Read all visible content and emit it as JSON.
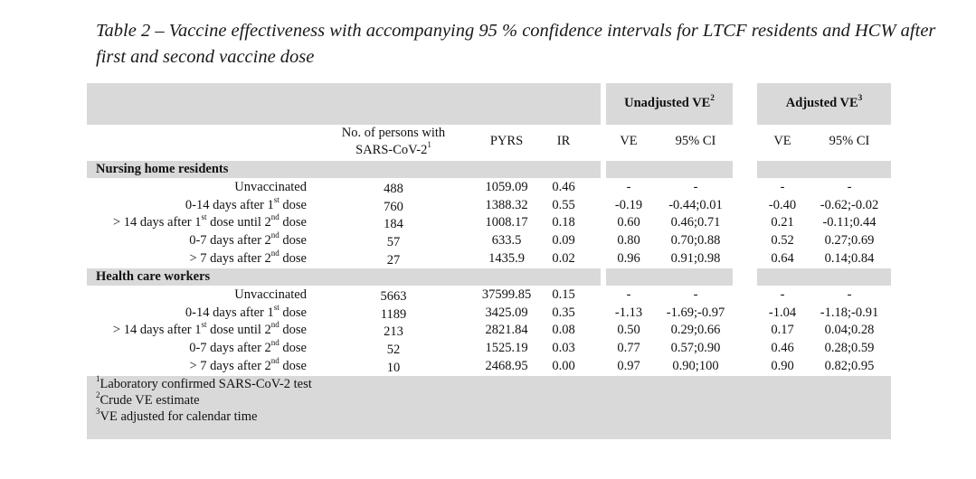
{
  "caption": "Table 2 – Vaccine effectiveness with accompanying 95 % confidence intervals for LTCF residents and HCW after first and second vaccine dose",
  "header": {
    "group_unadjusted": "Unadjusted VE",
    "group_unadjusted_sup": "2",
    "group_adjusted": "Adjusted VE",
    "group_adjusted_sup": "3",
    "col_persons_line1": "No. of persons with",
    "col_persons_line2": "SARS-CoV-2",
    "col_persons_sup": "1",
    "col_pyrs": "PYRS",
    "col_ir": "IR",
    "col_ve": "VE",
    "col_ci": "95% CI",
    "col_ve_adj": "VE",
    "col_ci_adj": "95% CI"
  },
  "sections": [
    {
      "title": "Nursing home residents",
      "rows": [
        {
          "cases": "488",
          "pyrs": "1059.09",
          "ir": "0.46",
          "ve": "-",
          "ci": "-",
          "ve_adj": "-",
          "ci_adj": "-"
        },
        {
          "cases": "760",
          "pyrs": "1388.32",
          "ir": "0.55",
          "ve": "-0.19",
          "ci": "-0.44;0.01",
          "ve_adj": "-0.40",
          "ci_adj": "-0.62;-0.02"
        },
        {
          "cases": "184",
          "pyrs": "1008.17",
          "ir": "0.18",
          "ve": "0.60",
          "ci": "0.46;0.71",
          "ve_adj": "0.21",
          "ci_adj": "-0.11;0.44"
        },
        {
          "cases": "57",
          "pyrs": "633.5",
          "ir": "0.09",
          "ve": "0.80",
          "ci": "0.70;0.88",
          "ve_adj": "0.52",
          "ci_adj": "0.27;0.69"
        },
        {
          "cases": "27",
          "pyrs": "1435.9",
          "ir": "0.02",
          "ve": "0.96",
          "ci": "0.91;0.98",
          "ve_adj": "0.64",
          "ci_adj": "0.14;0.84"
        }
      ]
    },
    {
      "title": "Health care workers",
      "rows": [
        {
          "cases": "5663",
          "pyrs": "37599.85",
          "ir": "0.15",
          "ve": "-",
          "ci": "-",
          "ve_adj": "-",
          "ci_adj": "-"
        },
        {
          "cases": "1189",
          "pyrs": "3425.09",
          "ir": "0.35",
          "ve": "-1.13",
          "ci": "-1.69;-0.97",
          "ve_adj": "-1.04",
          "ci_adj": "-1.18;-0.91"
        },
        {
          "cases": "213",
          "pyrs": "2821.84",
          "ir": "0.08",
          "ve": "0.50",
          "ci": "0.29;0.66",
          "ve_adj": "0.17",
          "ci_adj": "0.04;0.28"
        },
        {
          "cases": "52",
          "pyrs": "1525.19",
          "ir": "0.03",
          "ve": "0.77",
          "ci": "0.57;0.90",
          "ve_adj": "0.46",
          "ci_adj": "0.28;0.59"
        },
        {
          "cases": "10",
          "pyrs": "2468.95",
          "ir": "0.00",
          "ve": "0.97",
          "ci": "0.90;100",
          "ve_adj": "0.90",
          "ci_adj": "0.82;0.95"
        }
      ]
    }
  ],
  "row_labels": [
    {
      "pre": "Unvaccinated"
    },
    {
      "pre": "0-14 days after 1",
      "sup": "st",
      "post": " dose"
    },
    {
      "pre": "> 14 days after 1",
      "sup": "st",
      "mid": " dose until 2",
      "sup2": "nd",
      "post": " dose"
    },
    {
      "pre": "0-7 days after 2",
      "sup": "nd",
      "post": " dose"
    },
    {
      "pre": "> 7 days after 2",
      "sup": "nd",
      "post": " dose"
    }
  ],
  "footnotes": [
    {
      "sup": "1",
      "text": "Laboratory confirmed SARS-CoV-2 test"
    },
    {
      "sup": "2",
      "text": "Crude VE estimate"
    },
    {
      "sup": "3",
      "text": "VE adjusted for calendar time"
    }
  ]
}
